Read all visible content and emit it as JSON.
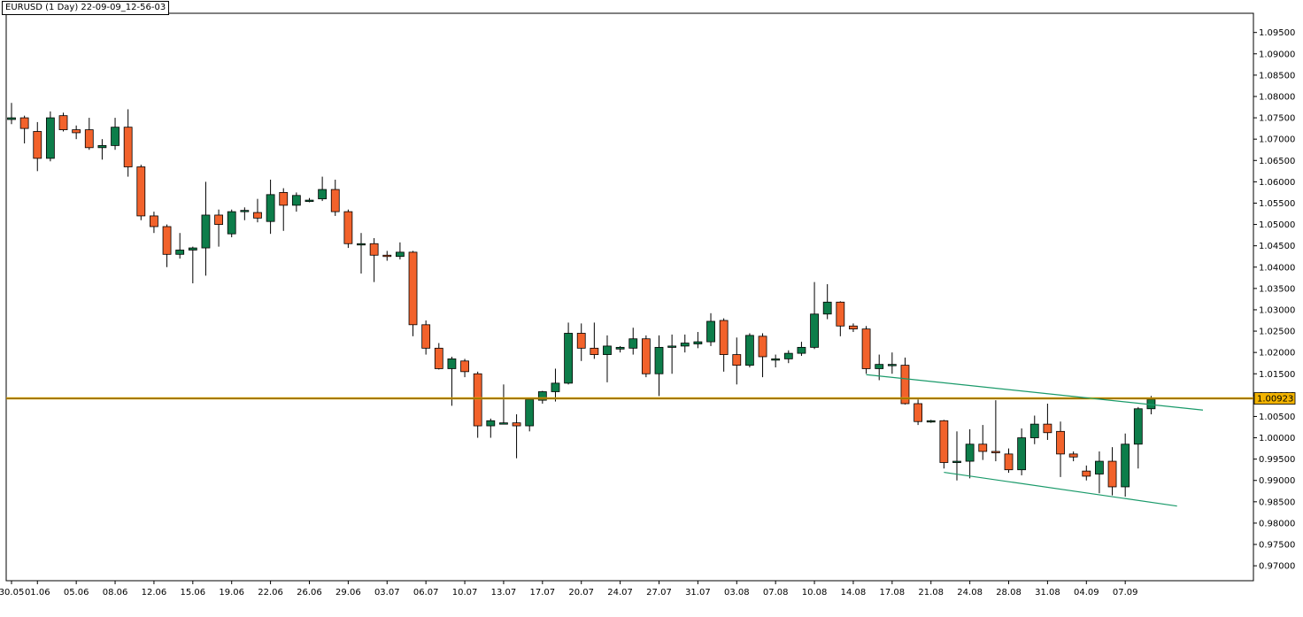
{
  "header": {
    "title": "EURUSD (1 Day) 22-09-09_12-56-03"
  },
  "chart_data": {
    "type": "candlestick",
    "symbol": "EURUSD",
    "timeframe": "1 Day",
    "ylim": [
      0.9665,
      1.0995
    ],
    "y_ticks": [
      "1.09500",
      "1.09000",
      "1.08500",
      "1.08000",
      "1.07500",
      "1.07000",
      "1.06500",
      "1.06000",
      "1.05500",
      "1.05000",
      "1.04500",
      "1.04000",
      "1.03500",
      "1.03000",
      "1.02500",
      "1.02000",
      "1.01500",
      "1.01000",
      "1.00500",
      "1.00000",
      "0.99500",
      "0.99000",
      "0.98500",
      "0.98000",
      "0.97500",
      "0.97000"
    ],
    "x_ticks": [
      {
        "index": 0,
        "label": "30.05"
      },
      {
        "index": 2,
        "label": "01.06"
      },
      {
        "index": 5,
        "label": "05.06"
      },
      {
        "index": 8,
        "label": "08.06"
      },
      {
        "index": 11,
        "label": "12.06"
      },
      {
        "index": 14,
        "label": "15.06"
      },
      {
        "index": 17,
        "label": "19.06"
      },
      {
        "index": 20,
        "label": "22.06"
      },
      {
        "index": 23,
        "label": "26.06"
      },
      {
        "index": 26,
        "label": "29.06"
      },
      {
        "index": 29,
        "label": "03.07"
      },
      {
        "index": 32,
        "label": "06.07"
      },
      {
        "index": 35,
        "label": "10.07"
      },
      {
        "index": 38,
        "label": "13.07"
      },
      {
        "index": 41,
        "label": "17.07"
      },
      {
        "index": 44,
        "label": "20.07"
      },
      {
        "index": 47,
        "label": "24.07"
      },
      {
        "index": 50,
        "label": "27.07"
      },
      {
        "index": 53,
        "label": "31.07"
      },
      {
        "index": 56,
        "label": "03.08"
      },
      {
        "index": 59,
        "label": "07.08"
      },
      {
        "index": 62,
        "label": "10.08"
      },
      {
        "index": 65,
        "label": "14.08"
      },
      {
        "index": 68,
        "label": "17.08"
      },
      {
        "index": 71,
        "label": "21.08"
      },
      {
        "index": 74,
        "label": "24.08"
      },
      {
        "index": 77,
        "label": "28.08"
      },
      {
        "index": 80,
        "label": "31.08"
      },
      {
        "index": 83,
        "label": "04.09"
      },
      {
        "index": 86,
        "label": "07.09"
      }
    ],
    "current_price": "1.00923",
    "horizontal_line": 1.00923,
    "trend_lines": [
      {
        "from": {
          "index": 66,
          "price": 1.0148
        },
        "to": {
          "index": 92,
          "price": 1.0065
        }
      },
      {
        "from": {
          "index": 72,
          "price": 0.9919
        },
        "to": {
          "index": 90,
          "price": 0.984
        }
      }
    ],
    "candles": [
      [
        1.0746,
        1.0785,
        1.0735,
        1.075
      ],
      [
        1.075,
        1.0755,
        1.069,
        1.0725
      ],
      [
        1.0718,
        1.074,
        1.0625,
        1.0655
      ],
      [
        1.0655,
        1.0765,
        1.0648,
        1.075
      ],
      [
        1.0755,
        1.0762,
        1.0718,
        1.0722
      ],
      [
        1.0722,
        1.0732,
        1.07,
        1.0715
      ],
      [
        1.0722,
        1.075,
        1.0675,
        1.068
      ],
      [
        1.068,
        1.07,
        1.0652,
        1.0685
      ],
      [
        1.0685,
        1.075,
        1.0675,
        1.0728
      ],
      [
        1.0728,
        1.077,
        1.0612,
        1.0635
      ],
      [
        1.0635,
        1.064,
        1.051,
        1.052
      ],
      [
        1.052,
        1.053,
        1.048,
        1.0495
      ],
      [
        1.0495,
        1.05,
        1.04,
        1.043
      ],
      [
        1.043,
        1.048,
        1.042,
        1.044
      ],
      [
        1.044,
        1.0448,
        1.0362,
        1.0445
      ],
      [
        1.0445,
        1.06,
        1.038,
        1.0522
      ],
      [
        1.0522,
        1.0535,
        1.0448,
        1.05
      ],
      [
        1.0478,
        1.0535,
        1.047,
        1.053
      ],
      [
        1.053,
        1.054,
        1.051,
        1.0533
      ],
      [
        1.0528,
        1.056,
        1.0505,
        1.0515
      ],
      [
        1.0507,
        1.0605,
        1.0478,
        1.057
      ],
      [
        1.0575,
        1.0585,
        1.0485,
        1.0545
      ],
      [
        1.0545,
        1.0575,
        1.053,
        1.0568
      ],
      [
        1.0557,
        1.0562,
        1.0552,
        1.0557
      ],
      [
        1.056,
        1.0612,
        1.0555,
        1.0582
      ],
      [
        1.0582,
        1.0605,
        1.052,
        1.053
      ],
      [
        1.053,
        1.0535,
        1.0445,
        1.0455
      ],
      [
        1.0455,
        1.048,
        1.0385,
        1.0455
      ],
      [
        1.0455,
        1.0468,
        1.0365,
        1.0428
      ],
      [
        1.0428,
        1.0438,
        1.0415,
        1.0425
      ],
      [
        1.0425,
        1.0458,
        1.0418,
        1.0435
      ],
      [
        1.0435,
        1.0438,
        1.0238,
        1.0265
      ],
      [
        1.0265,
        1.0275,
        1.0195,
        1.021
      ],
      [
        1.021,
        1.0222,
        1.016,
        1.0162
      ],
      [
        1.0162,
        1.019,
        1.0075,
        1.0185
      ],
      [
        1.018,
        1.0185,
        1.0142,
        1.0155
      ],
      [
        1.015,
        1.0155,
        1.0,
        1.0028
      ],
      [
        1.0028,
        1.0045,
        1.0,
        1.004
      ],
      [
        1.0035,
        1.0125,
        1.0032,
        1.0035
      ],
      [
        1.0035,
        1.0055,
        0.9952,
        1.0028
      ],
      [
        1.0028,
        1.009,
        1.0015,
        1.009
      ],
      [
        1.0088,
        1.011,
        1.008,
        1.0108
      ],
      [
        1.0108,
        1.0162,
        1.0085,
        1.0128
      ],
      [
        1.0128,
        1.027,
        1.0125,
        1.0245
      ],
      [
        1.0245,
        1.0268,
        1.018,
        1.021
      ],
      [
        1.021,
        1.027,
        1.0185,
        1.0195
      ],
      [
        1.0195,
        1.024,
        1.013,
        1.0215
      ],
      [
        1.0208,
        1.0215,
        1.02,
        1.0212
      ],
      [
        1.021,
        1.0258,
        1.0195,
        1.0232
      ],
      [
        1.0232,
        1.024,
        1.0142,
        1.015
      ],
      [
        1.015,
        1.024,
        1.0098,
        1.0212
      ],
      [
        1.0212,
        1.0242,
        1.015,
        1.0215
      ],
      [
        1.0215,
        1.0242,
        1.02,
        1.0222
      ],
      [
        1.022,
        1.0248,
        1.021,
        1.0225
      ],
      [
        1.0225,
        1.0292,
        1.0215,
        1.0273
      ],
      [
        1.0275,
        1.028,
        1.0155,
        1.0195
      ],
      [
        1.0195,
        1.0235,
        1.0125,
        1.017
      ],
      [
        1.017,
        1.0245,
        1.0165,
        1.024
      ],
      [
        1.0238,
        1.0245,
        1.0142,
        1.019
      ],
      [
        1.0182,
        1.0195,
        1.0165,
        1.0185
      ],
      [
        1.0185,
        1.0205,
        1.0175,
        1.0198
      ],
      [
        1.0198,
        1.0225,
        1.0192,
        1.0212
      ],
      [
        1.0212,
        1.0365,
        1.0208,
        1.029
      ],
      [
        1.029,
        1.036,
        1.0278,
        1.0318
      ],
      [
        1.0318,
        1.032,
        1.0238,
        1.0262
      ],
      [
        1.0262,
        1.0268,
        1.0248,
        1.0255
      ],
      [
        1.0255,
        1.0262,
        1.015,
        1.0162
      ],
      [
        1.0162,
        1.0195,
        1.0135,
        1.0172
      ],
      [
        1.0172,
        1.02,
        1.015,
        1.0172
      ],
      [
        1.017,
        1.0188,
        1.0078,
        1.008
      ],
      [
        1.008,
        1.009,
        1.003,
        1.0038
      ],
      [
        1.0038,
        1.0042,
        1.0035,
        1.004
      ],
      [
        1.004,
        1.0042,
        0.9928,
        0.9942
      ],
      [
        0.9945,
        1.0015,
        0.99,
        0.9945
      ],
      [
        0.9945,
        1.002,
        0.9905,
        0.9985
      ],
      [
        0.9985,
        1.003,
        0.9948,
        0.9968
      ],
      [
        0.9968,
        1.0088,
        0.9945,
        0.9965
      ],
      [
        0.9962,
        0.9975,
        0.9918,
        0.9925
      ],
      [
        0.9925,
        1.0022,
        0.9912,
        1.0
      ],
      [
        1.0,
        1.0052,
        0.9985,
        1.0032
      ],
      [
        1.0032,
        1.008,
        0.9995,
        1.0012
      ],
      [
        1.0015,
        1.0038,
        0.9908,
        0.9962
      ],
      [
        0.9962,
        0.9968,
        0.9945,
        0.9955
      ],
      [
        0.9922,
        0.9935,
        0.99,
        0.991
      ],
      [
        0.9915,
        0.9968,
        0.987,
        0.9945
      ],
      [
        0.9945,
        0.9978,
        0.9865,
        0.9885
      ],
      [
        0.9885,
        1.001,
        0.9862,
        0.9985
      ],
      [
        0.9985,
        1.0072,
        0.9928,
        1.0068
      ],
      [
        1.0068,
        1.0098,
        1.0055,
        1.009
      ]
    ],
    "colors": {
      "up": "#0d7d4a",
      "down": "#f2622b",
      "wick": "#000000",
      "hline": "#f2b300",
      "trend": "#1a9a6a",
      "label_bg": "#f2b300"
    }
  }
}
